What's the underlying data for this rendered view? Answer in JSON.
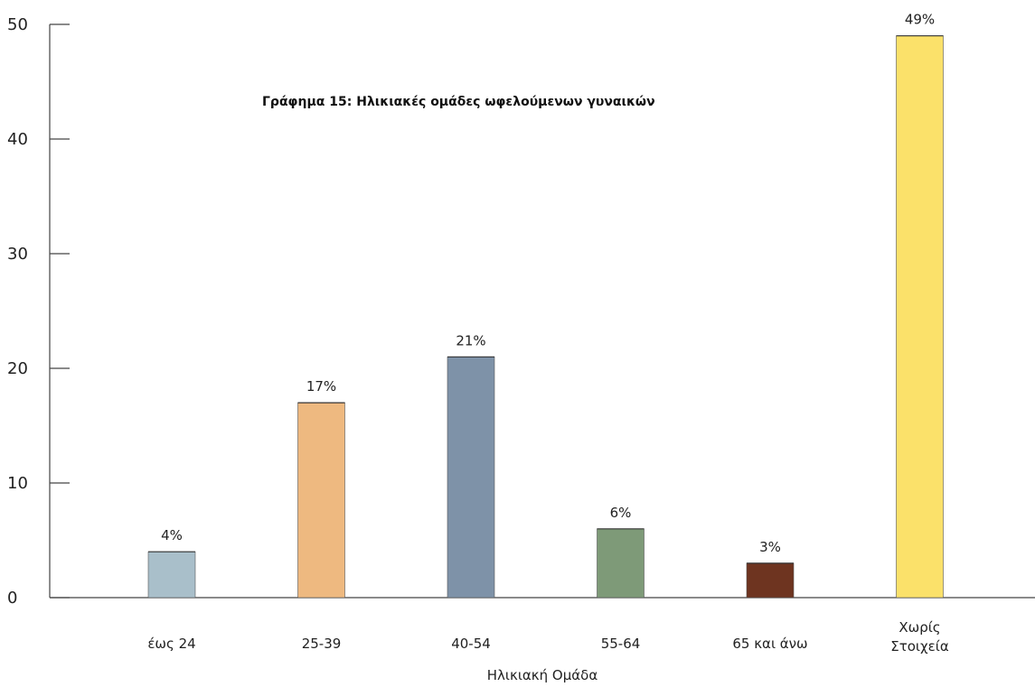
{
  "chart_data": {
    "type": "bar",
    "title": "Γράφημα 15: Ηλικιακές ομάδες ωφελούμενων γυναικών",
    "xlabel": "Ηλικιακή Ομάδα",
    "ylabel": "",
    "ylim": [
      0,
      50
    ],
    "yticks": [
      0,
      10,
      20,
      30,
      40,
      50
    ],
    "categories": [
      "έως 24",
      "25-39",
      "40-54",
      "55-64",
      "65 και άνω",
      "Χωρίς Στοιχεία"
    ],
    "category_lines": [
      [
        "έως 24"
      ],
      [
        "25-39"
      ],
      [
        "40-54"
      ],
      [
        "55-64"
      ],
      [
        "65 και άνω"
      ],
      [
        "Χωρίς",
        "Στοιχεία"
      ]
    ],
    "values": [
      4,
      17,
      21,
      6,
      3,
      49
    ],
    "data_labels": [
      "4%",
      "17%",
      "21%",
      "6%",
      "3%",
      "49%"
    ],
    "colors": [
      "#A9BFCA",
      "#EEB980",
      "#7E92A8",
      "#7E9A78",
      "#6E3420",
      "#FBE16A"
    ],
    "grid": false,
    "legend": "none"
  }
}
